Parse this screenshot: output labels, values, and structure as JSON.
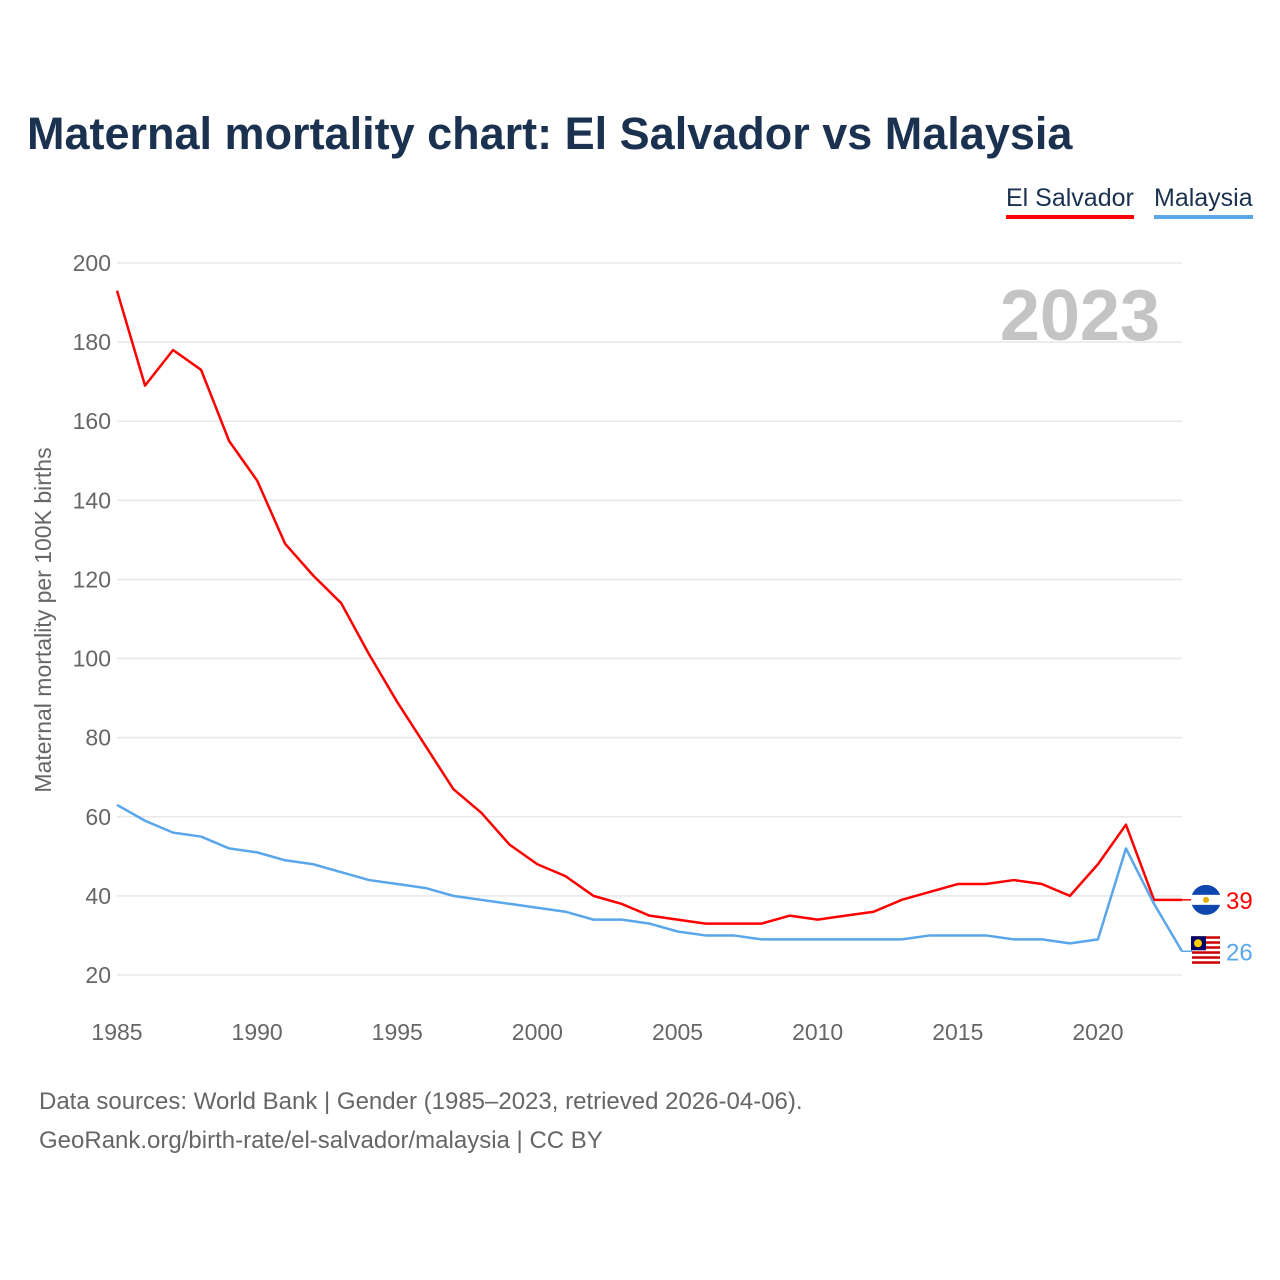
{
  "chart_data": {
    "type": "line",
    "title": "Maternal mortality chart: El Salvador vs Malaysia",
    "ylabel": "Maternal mortality per 100K births",
    "xlabel": "",
    "year_watermark": "2023",
    "xlim": [
      1985,
      2023
    ],
    "ylim": [
      20,
      200
    ],
    "x_ticks": [
      1985,
      1990,
      1995,
      2000,
      2005,
      2010,
      2015,
      2020
    ],
    "y_ticks": [
      20,
      40,
      60,
      80,
      100,
      120,
      140,
      160,
      180,
      200
    ],
    "grid": true,
    "legend_position": "top-right",
    "x": [
      1985,
      1986,
      1987,
      1988,
      1989,
      1990,
      1991,
      1992,
      1993,
      1994,
      1995,
      1996,
      1997,
      1998,
      1999,
      2000,
      2001,
      2002,
      2003,
      2004,
      2005,
      2006,
      2007,
      2008,
      2009,
      2010,
      2011,
      2012,
      2013,
      2014,
      2015,
      2016,
      2017,
      2018,
      2019,
      2020,
      2021,
      2022,
      2023
    ],
    "series": [
      {
        "name": "El Salvador",
        "color": "#ff0000",
        "end_label": "39",
        "values": [
          193,
          169,
          178,
          173,
          155,
          145,
          129,
          121,
          114,
          101,
          89,
          78,
          67,
          61,
          53,
          48,
          45,
          40,
          38,
          35,
          34,
          33,
          33,
          33,
          35,
          34,
          35,
          36,
          39,
          41,
          43,
          43,
          44,
          43,
          40,
          48,
          58,
          39,
          39
        ]
      },
      {
        "name": "Malaysia",
        "color": "#5aa6ea",
        "end_label": "26",
        "values": [
          63,
          59,
          56,
          55,
          52,
          51,
          49,
          48,
          46,
          44,
          43,
          42,
          40,
          39,
          38,
          37,
          36,
          34,
          34,
          33,
          31,
          30,
          30,
          29,
          29,
          29,
          29,
          29,
          29,
          30,
          30,
          30,
          29,
          29,
          28,
          29,
          52,
          38,
          26
        ]
      }
    ]
  },
  "footer": {
    "line1": "Data sources: World Bank | Gender (1985–2023, retrieved 2026-04-06).",
    "line2": "GeoRank.org/birth-rate/el-salvador/malaysia | CC BY"
  }
}
